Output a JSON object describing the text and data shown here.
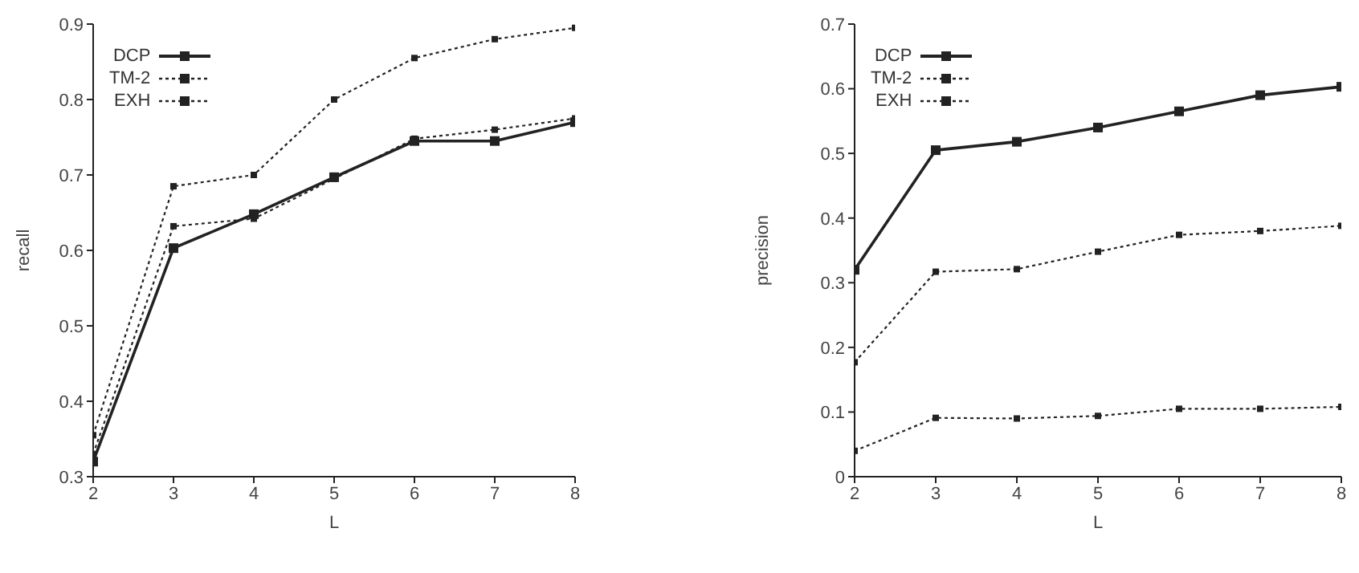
{
  "chart_data": [
    {
      "type": "line",
      "xlabel": "L",
      "ylabel": "recall",
      "x": [
        2,
        3,
        4,
        5,
        6,
        7,
        8
      ],
      "xlim": [
        2,
        8
      ],
      "xticks": [
        2,
        3,
        4,
        5,
        6,
        7,
        8
      ],
      "ylim": [
        0.3,
        0.9
      ],
      "yticks": [
        0.3,
        0.4,
        0.5,
        0.6,
        0.7,
        0.8,
        0.9
      ],
      "legend": "top left",
      "grid": false,
      "series": [
        {
          "name": "DCP",
          "color": "#222222",
          "line_style": "solid",
          "marker": "square",
          "values": [
            0.32,
            0.603,
            0.648,
            0.697,
            0.745,
            0.745,
            0.77
          ]
        },
        {
          "name": "TM-2",
          "color": "#222222",
          "line_style": "dotted",
          "marker": "square",
          "values": [
            0.33,
            0.632,
            0.642,
            0.695,
            0.748,
            0.76,
            0.775
          ]
        },
        {
          "name": "EXH",
          "color": "#222222",
          "line_style": "dotted",
          "marker": "square",
          "values": [
            0.355,
            0.685,
            0.7,
            0.8,
            0.855,
            0.88,
            0.895
          ]
        }
      ]
    },
    {
      "type": "line",
      "xlabel": "L",
      "ylabel": "precision",
      "x": [
        2,
        3,
        4,
        5,
        6,
        7,
        8
      ],
      "xlim": [
        2,
        8
      ],
      "xticks": [
        2,
        3,
        4,
        5,
        6,
        7,
        8
      ],
      "ylim": [
        0,
        0.7
      ],
      "yticks": [
        0,
        0.1,
        0.2,
        0.3,
        0.4,
        0.5,
        0.6,
        0.7
      ],
      "legend": "top left",
      "grid": false,
      "series": [
        {
          "name": "DCP",
          "color": "#222222",
          "line_style": "solid",
          "marker": "square",
          "values": [
            0.32,
            0.505,
            0.518,
            0.54,
            0.565,
            0.59,
            0.603
          ]
        },
        {
          "name": "TM-2",
          "color": "#222222",
          "line_style": "dotted",
          "marker": "square",
          "values": [
            0.177,
            0.317,
            0.321,
            0.348,
            0.374,
            0.38,
            0.388
          ]
        },
        {
          "name": "EXH",
          "color": "#222222",
          "line_style": "dotted",
          "marker": "square",
          "values": [
            0.04,
            0.091,
            0.09,
            0.094,
            0.105,
            0.105,
            0.108
          ]
        }
      ]
    }
  ]
}
